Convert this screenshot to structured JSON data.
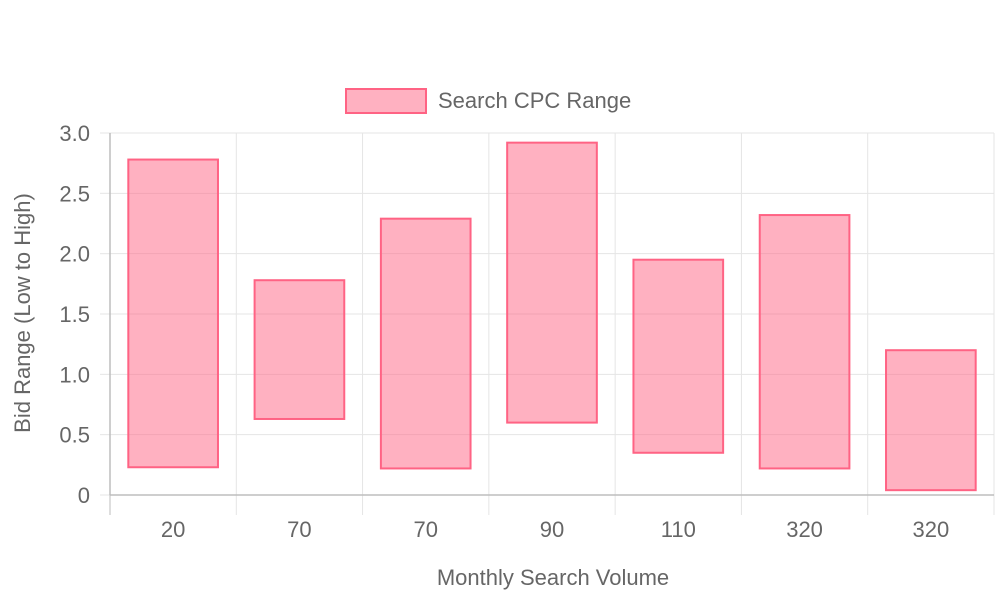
{
  "chart_data": {
    "type": "bar",
    "subtype": "floating-range",
    "categories": [
      "20",
      "70",
      "70",
      "90",
      "110",
      "320",
      "320"
    ],
    "series": [
      {
        "name": "Search CPC Range",
        "low": [
          0.23,
          0.63,
          0.22,
          0.6,
          0.35,
          0.22,
          0.04
        ],
        "high": [
          2.78,
          1.78,
          2.29,
          2.92,
          1.95,
          2.32,
          1.2
        ]
      }
    ],
    "xlabel": "Monthly Search Volume",
    "ylabel": "Bid Range (Low to High)",
    "ylim": [
      0,
      3.0
    ],
    "yticks": [
      "0",
      "0.5",
      "1.0",
      "1.5",
      "2.0",
      "2.5",
      "3.0"
    ],
    "ytick_values": [
      0,
      0.5,
      1.0,
      1.5,
      2.0,
      2.5,
      3.0
    ],
    "grid": true,
    "legend_position": "top-center"
  },
  "colors": {
    "bar_fill": "rgba(255, 99, 132, 0.5)",
    "bar_stroke": "#ff6384",
    "grid": "#e5e5e5",
    "axis": "#bdbdbd"
  }
}
